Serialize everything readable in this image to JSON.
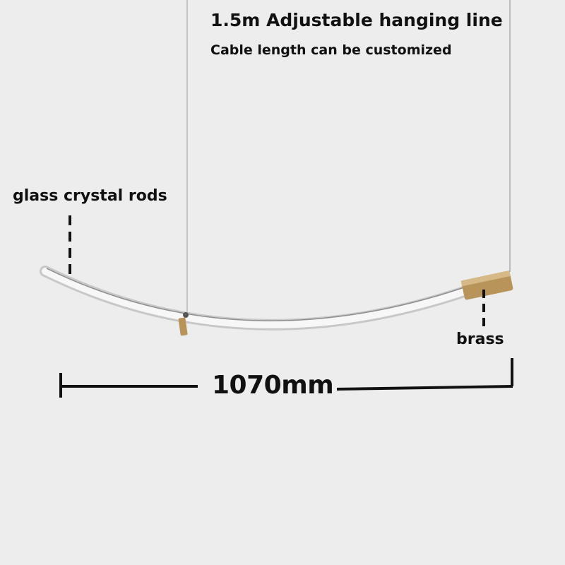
{
  "header": {
    "title": "1.5m Adjustable hanging line",
    "subtitle": "Cable length can be customized"
  },
  "labels": {
    "glass": "glass crystal rods",
    "brass": "brass",
    "dimension": "1070mm"
  },
  "colors": {
    "background": "#ededed",
    "brass": "#b8935a",
    "text": "#111111"
  }
}
